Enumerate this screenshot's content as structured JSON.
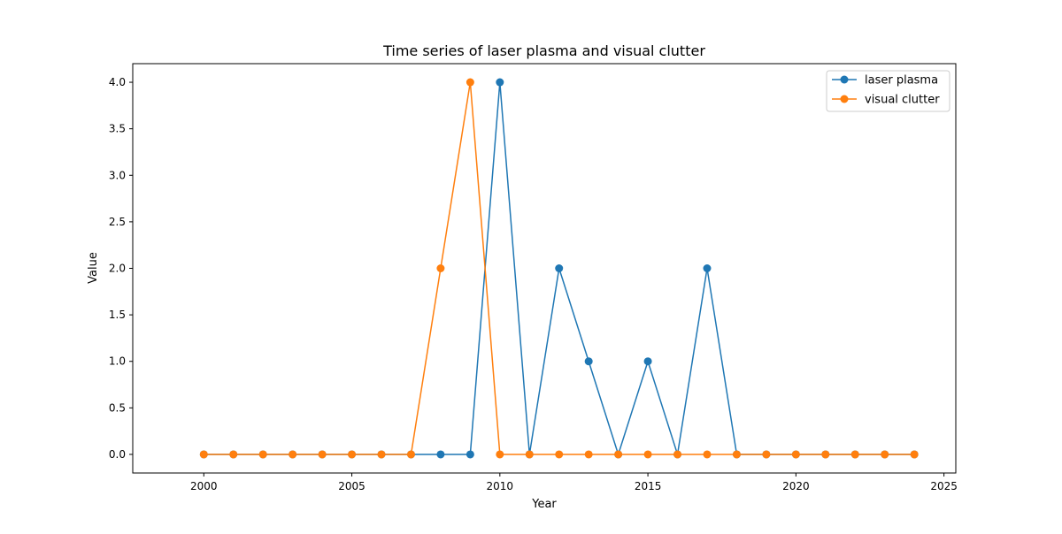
{
  "chart_data": {
    "type": "line",
    "title": "Time series of laser plasma and visual clutter",
    "xlabel": "Year",
    "ylabel": "Value",
    "xlim": [
      1997.6,
      2025.4
    ],
    "ylim": [
      -0.2,
      4.2
    ],
    "xticks": [
      2000,
      2005,
      2010,
      2015,
      2020,
      2025
    ],
    "xtick_labels": [
      "2000",
      "2005",
      "2010",
      "2015",
      "2020",
      "2025"
    ],
    "yticks": [
      0.0,
      0.5,
      1.0,
      1.5,
      2.0,
      2.5,
      3.0,
      3.5,
      4.0
    ],
    "ytick_labels": [
      "0.0",
      "0.5",
      "1.0",
      "1.5",
      "2.0",
      "2.5",
      "3.0",
      "3.5",
      "4.0"
    ],
    "grid": false,
    "legend_position": "top-right",
    "x": [
      2000,
      2001,
      2002,
      2003,
      2004,
      2005,
      2006,
      2007,
      2008,
      2009,
      2010,
      2011,
      2012,
      2013,
      2014,
      2015,
      2016,
      2017,
      2018,
      2019,
      2020,
      2021,
      2022,
      2023,
      2024
    ],
    "series": [
      {
        "name": "laser plasma",
        "color": "#1f77b4",
        "values": [
          0,
          0,
          0,
          0,
          0,
          0,
          0,
          0,
          0,
          0,
          4,
          0,
          2,
          1,
          0,
          1,
          0,
          2,
          0,
          0,
          0,
          0,
          0,
          0,
          0
        ]
      },
      {
        "name": "visual clutter",
        "color": "#ff7f0e",
        "values": [
          0,
          0,
          0,
          0,
          0,
          0,
          0,
          0,
          2,
          4,
          0,
          0,
          0,
          0,
          0,
          0,
          0,
          0,
          0,
          0,
          0,
          0,
          0,
          0,
          0
        ]
      }
    ]
  }
}
